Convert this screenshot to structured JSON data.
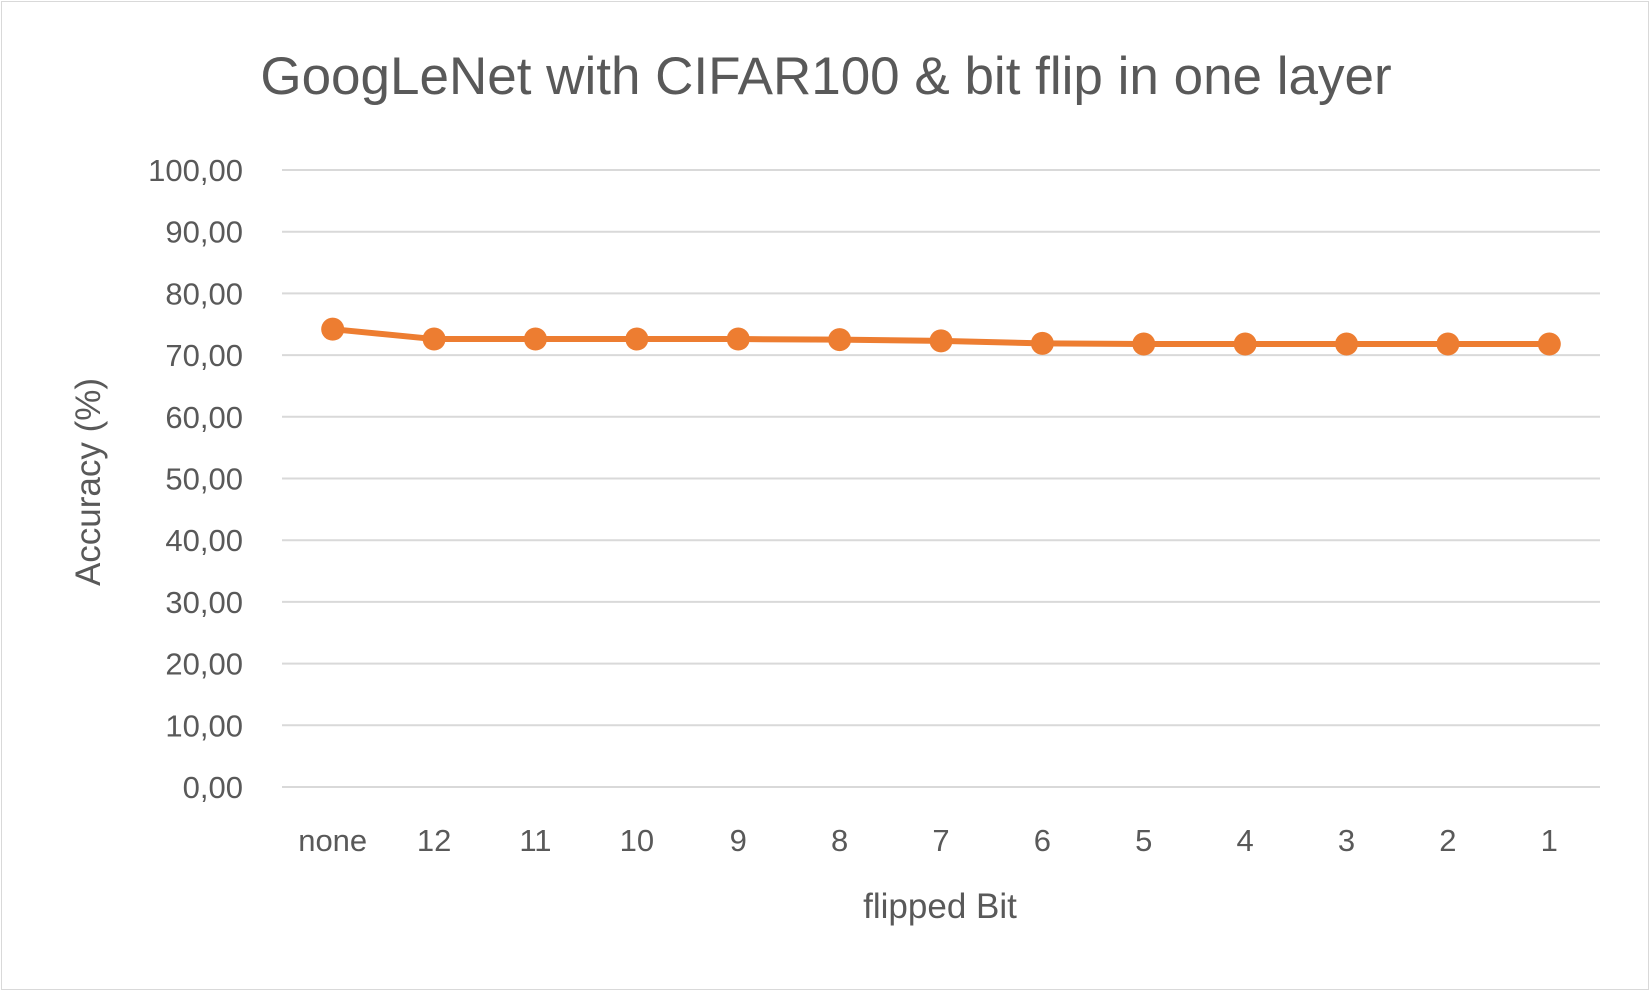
{
  "chart_data": {
    "type": "line",
    "title": "GoogLeNet with CIFAR100 & bit flip in one layer",
    "xlabel": "flipped Bit",
    "ylabel": "Accuracy (%)",
    "categories": [
      "none",
      "12",
      "11",
      "10",
      "9",
      "8",
      "7",
      "6",
      "5",
      "4",
      "3",
      "2",
      "1"
    ],
    "series": [
      {
        "values": [
          74.2,
          72.6,
          72.6,
          72.6,
          72.6,
          72.5,
          72.3,
          71.9,
          71.8,
          71.8,
          71.8,
          71.8,
          71.8
        ],
        "color": "#ed7d31"
      }
    ],
    "ylim": [
      0,
      100
    ],
    "yticks": [
      "0,00",
      "10,00",
      "20,00",
      "30,00",
      "40,00",
      "50,00",
      "60,00",
      "70,00",
      "80,00",
      "90,00",
      "100,00"
    ],
    "grid": true,
    "gridColor": "#d9d9d9",
    "legend": "none"
  }
}
